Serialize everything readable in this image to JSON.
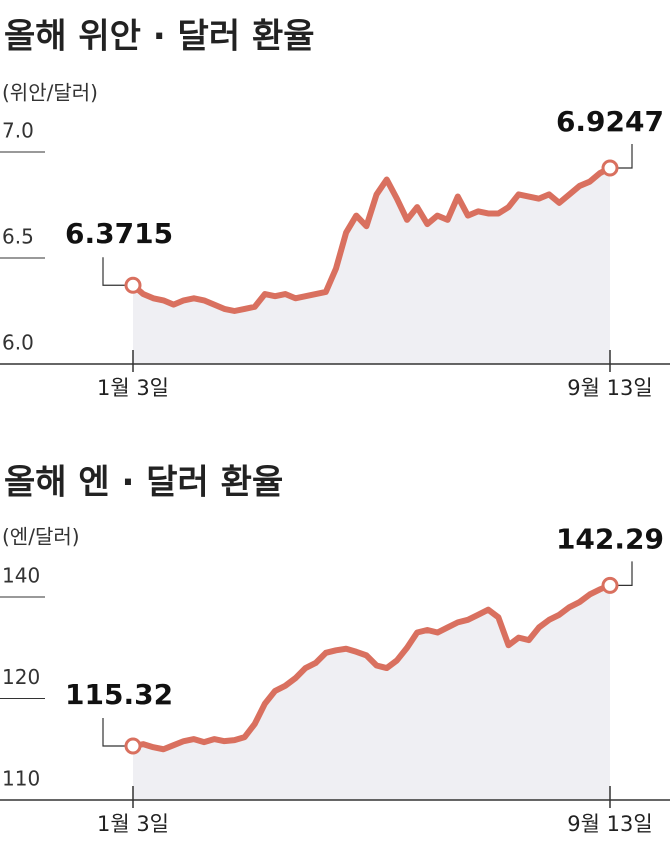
{
  "chart_data": [
    {
      "type": "line",
      "title": "올해 위안 · 달러 환율",
      "ylabel": "(위안/달러)",
      "categories": [
        "1월 3일",
        null,
        null,
        null,
        null,
        null,
        null,
        null,
        null,
        null,
        null,
        null,
        null,
        null,
        null,
        null,
        null,
        null,
        null,
        null,
        null,
        null,
        null,
        null,
        null,
        null,
        null,
        null,
        null,
        null,
        null,
        null,
        null,
        null,
        null,
        null,
        null,
        null,
        null,
        null,
        null,
        null,
        null,
        null,
        null,
        null,
        null,
        "9월 13일"
      ],
      "series": [
        {
          "color": "#d9705f",
          "values": [
            6.3715,
            6.33,
            6.31,
            6.3,
            6.28,
            6.3,
            6.31,
            6.3,
            6.28,
            6.26,
            6.25,
            6.26,
            6.27,
            6.33,
            6.32,
            6.33,
            6.31,
            6.32,
            6.33,
            6.34,
            6.45,
            6.62,
            6.7,
            6.65,
            6.8,
            6.87,
            6.78,
            6.68,
            6.74,
            6.66,
            6.7,
            6.68,
            6.79,
            6.7,
            6.72,
            6.71,
            6.71,
            6.74,
            6.8,
            6.79,
            6.78,
            6.8,
            6.76,
            6.8,
            6.84,
            6.86,
            6.9,
            6.9247
          ]
        }
      ],
      "ylim": [
        6.0,
        7.1
      ],
      "yticks": [
        {
          "value": 6,
          "label": "6.0"
        },
        6.5,
        {
          "value": 7,
          "label": "7.0"
        }
      ]
    },
    {
      "type": "line",
      "title": "올해 엔 · 달러 환율",
      "ylabel": "(엔/달러)",
      "categories": [
        "1월 3일",
        null,
        null,
        null,
        null,
        null,
        null,
        null,
        null,
        null,
        null,
        null,
        null,
        null,
        null,
        null,
        null,
        null,
        null,
        null,
        null,
        null,
        null,
        null,
        null,
        null,
        null,
        null,
        null,
        null,
        null,
        null,
        null,
        null,
        null,
        null,
        null,
        null,
        null,
        null,
        null,
        null,
        null,
        null,
        null,
        null,
        null,
        "9월 13일"
      ],
      "series": [
        {
          "color": "#d9705f",
          "values": [
            115.32,
            115.5,
            115.2,
            115.0,
            115.4,
            115.8,
            116.0,
            115.7,
            116.0,
            115.8,
            115.9,
            116.2,
            117.5,
            119.5,
            121.5,
            122.5,
            124,
            126,
            127,
            129,
            129.5,
            129.8,
            129.2,
            128.5,
            126.5,
            126,
            127.5,
            130,
            133,
            133.5,
            133,
            134,
            135,
            135.5,
            136.5,
            137.5,
            136,
            130.5,
            132,
            131.5,
            134,
            135.5,
            136.5,
            138,
            139,
            140.5,
            141.5,
            142.29
          ]
        }
      ],
      "ylim": [
        110,
        145
      ],
      "yticks": [
        110,
        120,
        140
      ]
    }
  ]
}
